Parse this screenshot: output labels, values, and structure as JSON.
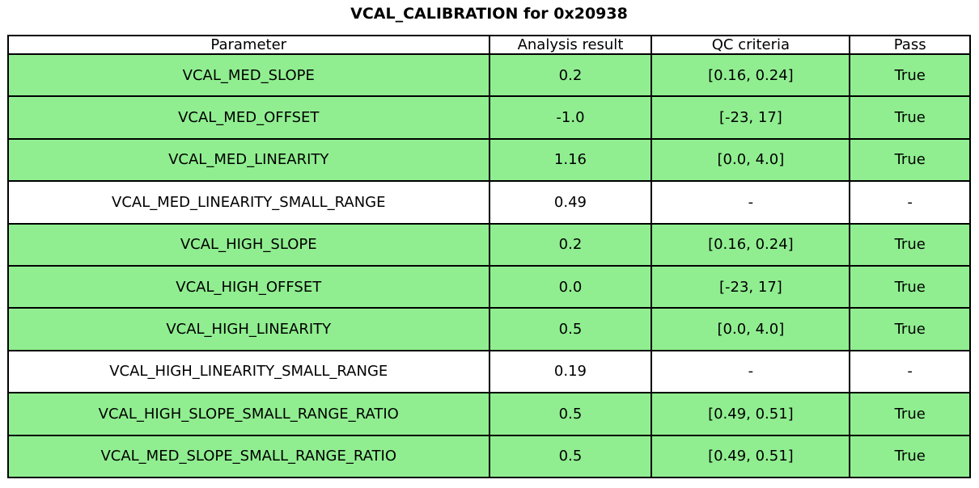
{
  "title": "VCAL_CALIBRATION for 0x20938",
  "colors": {
    "pass_row_green": "#90ee90",
    "neutral_row_white": "#ffffff",
    "border": "#000000",
    "text": "#000000"
  },
  "chart_data": {
    "type": "table",
    "title": "VCAL_CALIBRATION for 0x20938",
    "columns": [
      "Parameter",
      "Analysis result",
      "QC criteria",
      "Pass"
    ],
    "rows": [
      [
        "VCAL_MED_SLOPE",
        "0.2",
        "[0.16, 0.24]",
        "True"
      ],
      [
        "VCAL_MED_OFFSET",
        "-1.0",
        "[-23, 17]",
        "True"
      ],
      [
        "VCAL_MED_LINEARITY",
        "1.16",
        "[0.0, 4.0]",
        "True"
      ],
      [
        "VCAL_MED_LINEARITY_SMALL_RANGE",
        "0.49",
        "-",
        "-"
      ],
      [
        "VCAL_HIGH_SLOPE",
        "0.2",
        "[0.16, 0.24]",
        "True"
      ],
      [
        "VCAL_HIGH_OFFSET",
        "0.0",
        "[-23, 17]",
        "True"
      ],
      [
        "VCAL_HIGH_LINEARITY",
        "0.5",
        "[0.0, 4.0]",
        "True"
      ],
      [
        "VCAL_HIGH_LINEARITY_SMALL_RANGE",
        "0.19",
        "-",
        "-"
      ],
      [
        "VCAL_HIGH_SLOPE_SMALL_RANGE_RATIO",
        "0.5",
        "[0.49, 0.51]",
        "True"
      ],
      [
        "VCAL_MED_SLOPE_SMALL_RANGE_RATIO",
        "0.5",
        "[0.49, 0.51]",
        "True"
      ]
    ],
    "row_highlighted_green": [
      true,
      true,
      true,
      false,
      true,
      true,
      true,
      false,
      true,
      true
    ],
    "layout": {
      "legend": "none",
      "grid": "full cell borders",
      "col_width_pct": [
        50.0,
        16.9,
        20.6,
        12.5
      ],
      "header_background": "#ffffff",
      "title_position": "top-center"
    }
  }
}
